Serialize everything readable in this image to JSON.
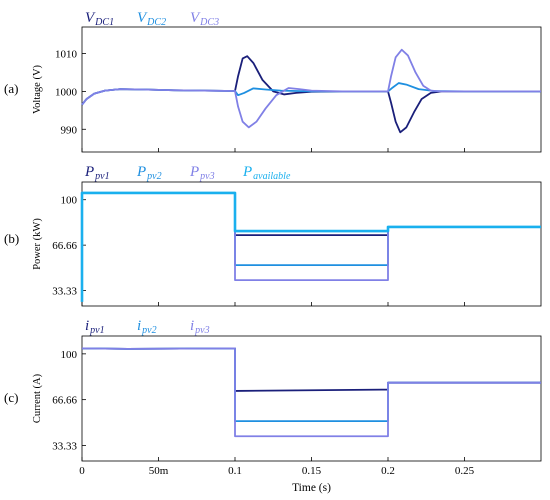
{
  "chart_data": [
    {
      "panel": "(a)",
      "type": "line",
      "ylabel": "Voltage (V)",
      "ylim": [
        984,
        1017
      ],
      "yticks": [
        990,
        1000,
        1010
      ],
      "xlim": [
        0,
        0.3
      ],
      "grid": false,
      "legend_position": "top-left",
      "series": [
        {
          "name": "V",
          "sub": "DC1",
          "color": "#1a1f7a",
          "x": [
            0,
            0.003,
            0.008,
            0.015,
            0.025,
            0.04,
            0.06,
            0.08,
            0.1,
            0.102,
            0.105,
            0.108,
            0.112,
            0.118,
            0.125,
            0.132,
            0.14,
            0.15,
            0.17,
            0.2,
            0.202,
            0.205,
            0.208,
            0.212,
            0.217,
            0.222,
            0.228,
            0.235,
            0.25,
            0.3
          ],
          "y": [
            996.5,
            998,
            999.4,
            1000.2,
            1000.6,
            1000.5,
            1000.3,
            1000.2,
            1000.1,
            1004,
            1008.7,
            1009.3,
            1007.5,
            1003,
            1000,
            999.2,
            999.6,
            999.9,
            1000,
            1000,
            997,
            992,
            989.2,
            990.5,
            994.5,
            998,
            999.6,
            1000,
            1000,
            1000
          ]
        },
        {
          "name": "V",
          "sub": "DC2",
          "color": "#1e8fe0",
          "x": [
            0,
            0.003,
            0.008,
            0.015,
            0.025,
            0.04,
            0.06,
            0.08,
            0.1,
            0.102,
            0.106,
            0.112,
            0.12,
            0.13,
            0.14,
            0.15,
            0.17,
            0.2,
            0.203,
            0.207,
            0.212,
            0.22,
            0.23,
            0.25,
            0.3
          ],
          "y": [
            996.5,
            998,
            999.4,
            1000.2,
            1000.6,
            1000.5,
            1000.3,
            1000.2,
            1000.1,
            999,
            999.6,
            1000.8,
            1000.5,
            1000.2,
            1000.1,
            1000,
            1000,
            1000,
            1001,
            1002.2,
            1001.8,
            1000.6,
            1000.1,
            1000,
            1000
          ]
        },
        {
          "name": "V",
          "sub": "DC3",
          "color": "#8080e6",
          "x": [
            0,
            0.003,
            0.008,
            0.015,
            0.025,
            0.04,
            0.06,
            0.08,
            0.1,
            0.102,
            0.105,
            0.109,
            0.114,
            0.12,
            0.127,
            0.135,
            0.142,
            0.15,
            0.17,
            0.2,
            0.202,
            0.205,
            0.209,
            0.213,
            0.218,
            0.223,
            0.228,
            0.235,
            0.25,
            0.3
          ],
          "y": [
            996.5,
            998,
            999.4,
            1000.2,
            1000.6,
            1000.5,
            1000.3,
            1000.2,
            1000.1,
            996,
            992,
            990.5,
            992,
            995.5,
            999,
            1000.9,
            1000.6,
            1000.2,
            1000,
            1000,
            1004,
            1009,
            1011,
            1009.5,
            1005,
            1001.5,
            1000.2,
            1000,
            1000,
            1000
          ]
        }
      ]
    },
    {
      "panel": "(b)",
      "type": "line",
      "ylabel": "Power (kW)",
      "ylim": [
        22,
        113
      ],
      "yticks": [
        33.33,
        66.66,
        100
      ],
      "ytick_labels": [
        "33.33",
        "66.66",
        "100"
      ],
      "xlim": [
        0,
        0.3
      ],
      "grid": false,
      "legend_position": "top-left",
      "series": [
        {
          "name": "P",
          "sub": "pv1",
          "color": "#1a1f7a",
          "x": [
            0,
            0.1,
            0.1,
            0.2,
            0.2,
            0.3
          ],
          "y": [
            105,
            105,
            74,
            74,
            80,
            80
          ]
        },
        {
          "name": "P",
          "sub": "pv2",
          "color": "#1e8fe0",
          "x": [
            0,
            0.1,
            0.1,
            0.2,
            0.2,
            0.3
          ],
          "y": [
            105,
            105,
            52,
            52,
            80,
            80
          ]
        },
        {
          "name": "P",
          "sub": "pv3",
          "color": "#8080e6",
          "x": [
            0,
            0.1,
            0.1,
            0.2,
            0.2,
            0.3
          ],
          "y": [
            105,
            105,
            41,
            41,
            80,
            80
          ]
        },
        {
          "name": "P",
          "sub": "available",
          "color": "#1ab0ee",
          "x": [
            0,
            0,
            0.1,
            0.1,
            0.2,
            0.2,
            0.3
          ],
          "y": [
            25,
            105,
            105,
            77,
            77,
            80,
            80
          ]
        }
      ]
    },
    {
      "panel": "(c)",
      "type": "line",
      "ylabel": "Current (A)",
      "ylim": [
        22,
        113
      ],
      "yticks": [
        33.33,
        66.66,
        100
      ],
      "ytick_labels": [
        "33.33",
        "66.66",
        "100"
      ],
      "xlim": [
        0,
        0.3
      ],
      "xticks": [
        0,
        0.05,
        0.1,
        0.15,
        0.2,
        0.25
      ],
      "xtick_labels": [
        "0",
        "50m",
        "0.1",
        "0.15",
        "0.2",
        "0.25"
      ],
      "xlabel": "Time (s)",
      "grid": false,
      "legend_position": "top-left",
      "series": [
        {
          "name": "i",
          "sub": "pv1",
          "color": "#1a1f7a",
          "x": [
            0,
            0.03,
            0.1,
            0.1,
            0.2,
            0.2,
            0.3
          ],
          "y": [
            104,
            103.6,
            104,
            73,
            74,
            79,
            79
          ]
        },
        {
          "name": "i",
          "sub": "pv2",
          "color": "#1e8fe0",
          "x": [
            0,
            0.03,
            0.1,
            0.1,
            0.2,
            0.2,
            0.3
          ],
          "y": [
            104,
            103.6,
            104,
            51,
            51,
            79,
            79
          ]
        },
        {
          "name": "i",
          "sub": "pv3",
          "color": "#8080e6",
          "x": [
            0,
            0.03,
            0.1,
            0.1,
            0.2,
            0.2,
            0.3
          ],
          "y": [
            104,
            103.6,
            104,
            40,
            40,
            79,
            79
          ]
        }
      ]
    }
  ]
}
